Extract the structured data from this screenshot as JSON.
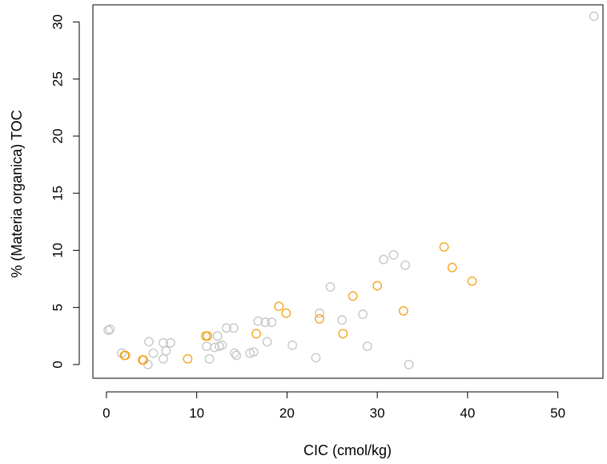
{
  "chart_data": {
    "type": "scatter",
    "xlabel": "CIC (cmol/kg)",
    "ylabel": "% (Materia organica) TOC",
    "xlim": [
      -1.5,
      55
    ],
    "ylim": [
      -1.2,
      31.5
    ],
    "xticks": [
      "0",
      "10",
      "20",
      "30",
      "40",
      "50"
    ],
    "yticks": [
      "0",
      "5",
      "10",
      "15",
      "20",
      "25",
      "30"
    ],
    "grid": false,
    "series": [
      {
        "color": "#c8c8c8",
        "points": [
          [
            0.2,
            3.0
          ],
          [
            0.4,
            3.1
          ],
          [
            1.7,
            1.0
          ],
          [
            4.6,
            0.0
          ],
          [
            4.7,
            2.0
          ],
          [
            5.2,
            1.0
          ],
          [
            6.3,
            1.9
          ],
          [
            6.3,
            0.5
          ],
          [
            6.6,
            1.2
          ],
          [
            7.1,
            1.9
          ],
          [
            11.1,
            1.6
          ],
          [
            11.4,
            0.5
          ],
          [
            12.0,
            1.5
          ],
          [
            12.3,
            2.5
          ],
          [
            12.5,
            1.6
          ],
          [
            12.8,
            1.7
          ],
          [
            13.3,
            3.2
          ],
          [
            14.1,
            3.2
          ],
          [
            14.2,
            1.0
          ],
          [
            14.4,
            0.8
          ],
          [
            15.9,
            1.0
          ],
          [
            16.3,
            1.1
          ],
          [
            16.8,
            3.8
          ],
          [
            17.6,
            3.7
          ],
          [
            17.8,
            2.0
          ],
          [
            18.3,
            3.7
          ],
          [
            20.6,
            1.7
          ],
          [
            23.2,
            0.6
          ],
          [
            23.6,
            4.5
          ],
          [
            24.8,
            6.8
          ],
          [
            26.1,
            3.9
          ],
          [
            28.4,
            4.4
          ],
          [
            28.9,
            1.6
          ],
          [
            30.7,
            9.2
          ],
          [
            31.8,
            9.6
          ],
          [
            33.1,
            8.7
          ],
          [
            33.5,
            0.0
          ],
          [
            54.0,
            30.5
          ]
        ]
      },
      {
        "color": "#f5a623",
        "points": [
          [
            2.0,
            0.8
          ],
          [
            2.1,
            0.8
          ],
          [
            4.0,
            0.4
          ],
          [
            4.1,
            0.4
          ],
          [
            9.0,
            0.5
          ],
          [
            11.0,
            2.5
          ],
          [
            11.2,
            2.5
          ],
          [
            16.6,
            2.7
          ],
          [
            19.1,
            5.1
          ],
          [
            19.9,
            4.5
          ],
          [
            23.6,
            4.0
          ],
          [
            26.2,
            2.7
          ],
          [
            27.3,
            6.0
          ],
          [
            30.0,
            6.9
          ],
          [
            32.9,
            4.7
          ],
          [
            37.4,
            10.3
          ],
          [
            38.3,
            8.5
          ],
          [
            40.5,
            7.3
          ]
        ]
      }
    ]
  }
}
